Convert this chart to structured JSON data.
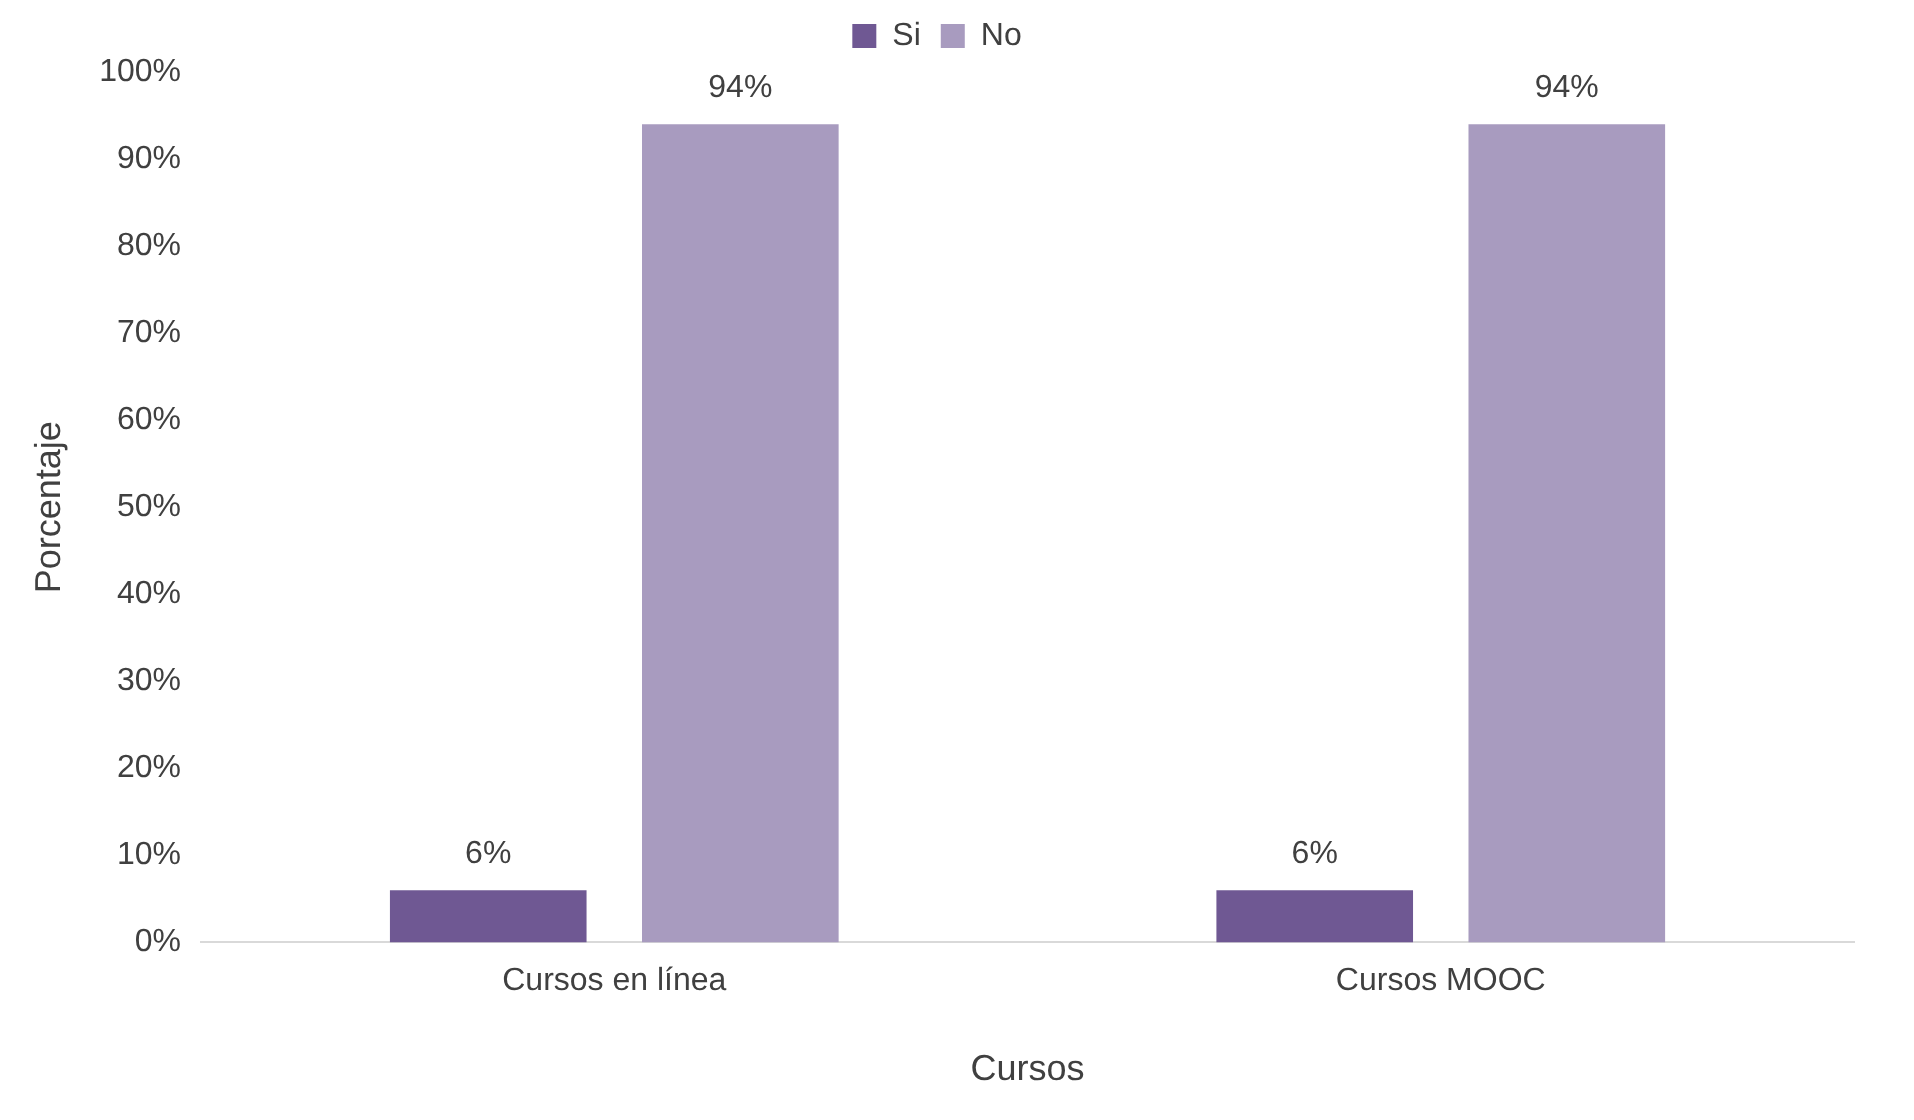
{
  "chart_data": {
    "type": "bar",
    "xlabel": "Cursos",
    "ylabel": "Porcentaje",
    "categories": [
      "Cursos en línea",
      "Cursos MOOC"
    ],
    "series": [
      {
        "name": "Si",
        "color": "#6f5893",
        "values": [
          6,
          6
        ],
        "value_labels": [
          "6%",
          "6%"
        ]
      },
      {
        "name": "No",
        "color": "#a89bbf",
        "values": [
          94,
          94
        ],
        "value_labels": [
          "94%",
          "94%"
        ]
      }
    ],
    "ylim": [
      0,
      100
    ],
    "yticks": [
      {
        "value": 0,
        "label": "0%"
      },
      {
        "value": 10,
        "label": "10%"
      },
      {
        "value": 20,
        "label": "20%"
      },
      {
        "value": 30,
        "label": "30%"
      },
      {
        "value": 40,
        "label": "40%"
      },
      {
        "value": 50,
        "label": "50%"
      },
      {
        "value": 60,
        "label": "60%"
      },
      {
        "value": 70,
        "label": "70%"
      },
      {
        "value": 80,
        "label": "80%"
      },
      {
        "value": 90,
        "label": "90%"
      },
      {
        "value": 100,
        "label": "100%"
      }
    ],
    "grid": false,
    "legend": "top"
  }
}
